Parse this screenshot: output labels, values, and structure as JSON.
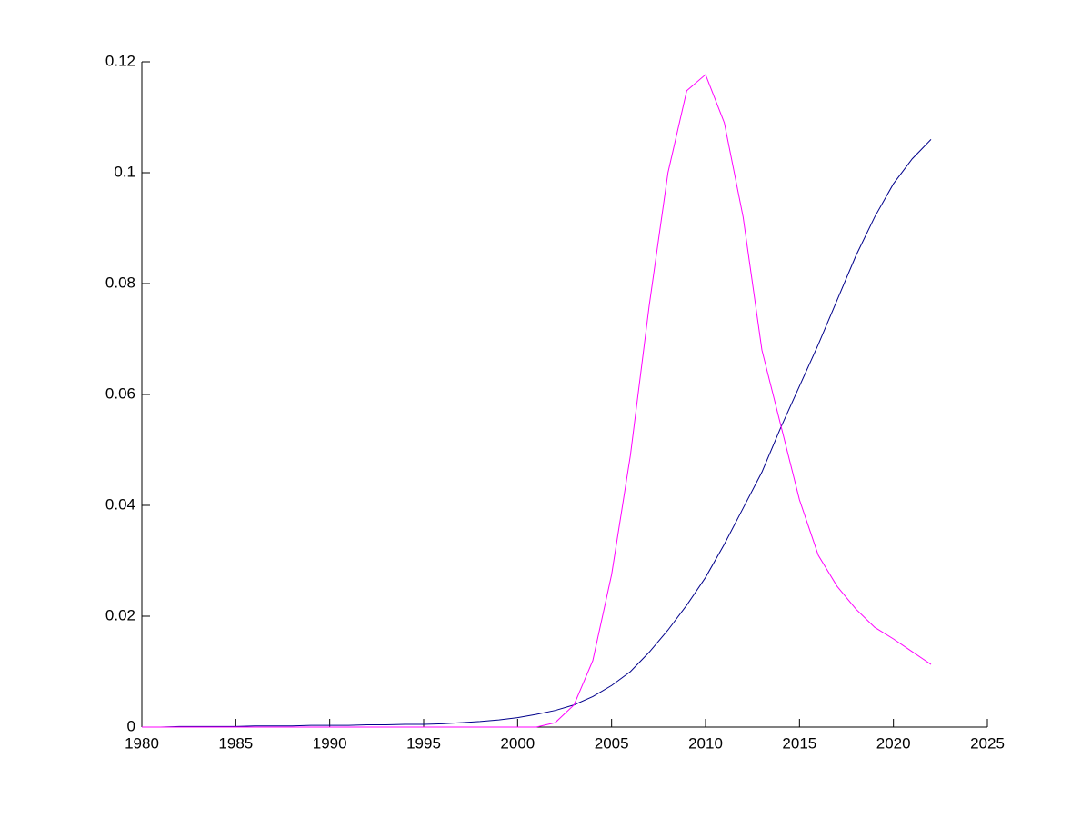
{
  "chart_data": {
    "type": "line",
    "x": [
      1980,
      1981,
      1982,
      1983,
      1984,
      1985,
      1986,
      1987,
      1988,
      1989,
      1990,
      1991,
      1992,
      1993,
      1994,
      1995,
      1996,
      1997,
      1998,
      1999,
      2000,
      2001,
      2002,
      2003,
      2004,
      2005,
      2006,
      2007,
      2008,
      2009,
      2010,
      2011,
      2012,
      2013,
      2014,
      2015,
      2016,
      2017,
      2018,
      2019,
      2020,
      2021,
      2022
    ],
    "series": [
      {
        "color": "#00008b",
        "values": [
          0,
          0,
          0.0001,
          0.0001,
          0.0001,
          0.0001,
          0.0002,
          0.0002,
          0.0002,
          0.0003,
          0.0003,
          0.0003,
          0.0004,
          0.0004,
          0.0005,
          0.0005,
          0.0006,
          0.0008,
          0.001,
          0.0013,
          0.0017,
          0.0023,
          0.003,
          0.004,
          0.0055,
          0.0075,
          0.01,
          0.0135,
          0.0175,
          0.022,
          0.027,
          0.033,
          0.0395,
          0.046,
          0.054,
          0.0615,
          0.069,
          0.077,
          0.085,
          0.092,
          0.098,
          0.1025,
          0.106
        ]
      },
      {
        "color": "#ff00ff",
        "values": [
          0,
          0,
          0,
          0,
          0,
          0,
          0,
          0,
          0,
          0,
          0,
          0,
          0,
          0,
          0,
          0,
          0,
          0,
          0,
          0,
          0,
          0,
          0.0008,
          0.004,
          0.012,
          0.0275,
          0.049,
          0.076,
          0.1,
          0.1148,
          0.1177,
          0.109,
          0.092,
          0.068,
          0.0545,
          0.041,
          0.031,
          0.0254,
          0.0213,
          0.018,
          0.0159,
          0.0136,
          0.0113
        ]
      }
    ],
    "xlim": [
      1980,
      2025
    ],
    "xticks": [
      1980,
      1985,
      1990,
      1995,
      2000,
      2005,
      2010,
      2015,
      2020,
      2025
    ],
    "ylim": [
      0,
      0.12
    ],
    "yticks": [
      0,
      0.02,
      0.04,
      0.06,
      0.08,
      0.1,
      0.12
    ]
  }
}
